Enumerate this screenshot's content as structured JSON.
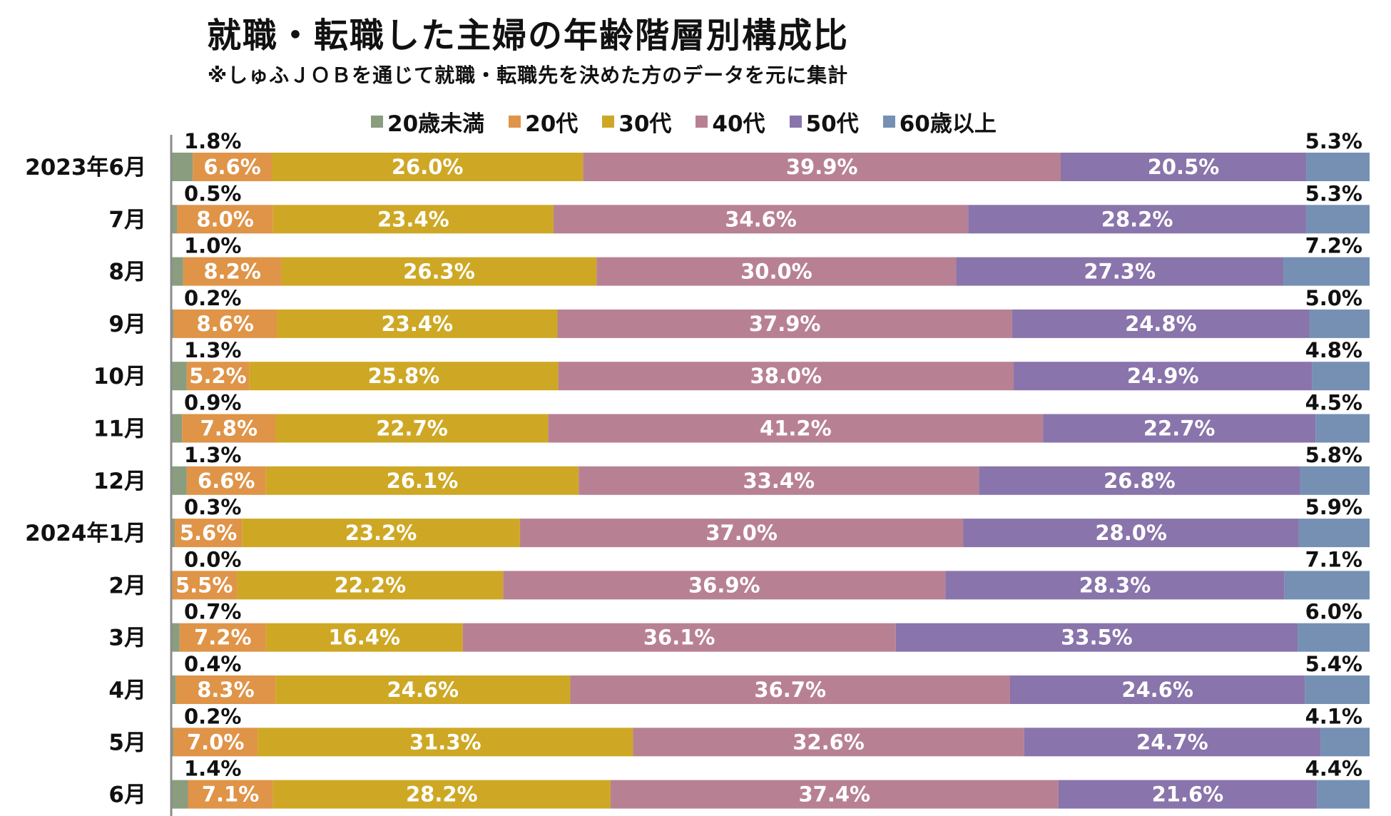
{
  "chart_data": {
    "type": "bar",
    "orientation": "horizontal",
    "stacked": true,
    "normalized": true,
    "title": "就職・転職した主婦の年齢階層別構成比",
    "subtitle": "※しゅふＪＯＢを通じて就職・転職先を決めた方のデータを元に集計",
    "legend_position": "top",
    "categories": [
      "2023年6月",
      "7月",
      "8月",
      "9月",
      "10月",
      "11月",
      "12月",
      "2024年1月",
      "2月",
      "3月",
      "4月",
      "5月",
      "6月"
    ],
    "value_labels_format": "percent_1dp",
    "series": [
      {
        "name": "20歳未満",
        "color": "#8a9d7f",
        "values": [
          1.8,
          0.5,
          1.0,
          0.2,
          1.3,
          0.9,
          1.3,
          0.3,
          0.0,
          0.7,
          0.4,
          0.2,
          1.4
        ]
      },
      {
        "name": "20代",
        "color": "#df9448",
        "values": [
          6.6,
          8.0,
          8.2,
          8.6,
          5.2,
          7.8,
          6.6,
          5.6,
          5.5,
          7.2,
          8.3,
          7.0,
          7.1
        ]
      },
      {
        "name": "30代",
        "color": "#cea825",
        "values": [
          26.0,
          23.4,
          26.3,
          23.4,
          25.8,
          22.7,
          26.1,
          23.2,
          22.2,
          16.4,
          24.6,
          31.3,
          28.2
        ]
      },
      {
        "name": "40代",
        "color": "#b88193",
        "values": [
          39.9,
          34.6,
          30.0,
          37.9,
          38.0,
          41.2,
          33.4,
          37.0,
          36.9,
          36.1,
          36.7,
          32.6,
          37.4
        ]
      },
      {
        "name": "50代",
        "color": "#8974ab",
        "values": [
          20.5,
          28.2,
          27.3,
          24.8,
          24.9,
          22.7,
          26.8,
          28.0,
          28.3,
          33.5,
          24.6,
          24.7,
          21.6
        ]
      },
      {
        "name": "60歳以上",
        "color": "#7590b3",
        "values": [
          5.3,
          5.3,
          7.2,
          5.0,
          4.8,
          4.5,
          5.8,
          5.9,
          7.1,
          6.0,
          5.4,
          4.1,
          4.4
        ]
      }
    ]
  }
}
